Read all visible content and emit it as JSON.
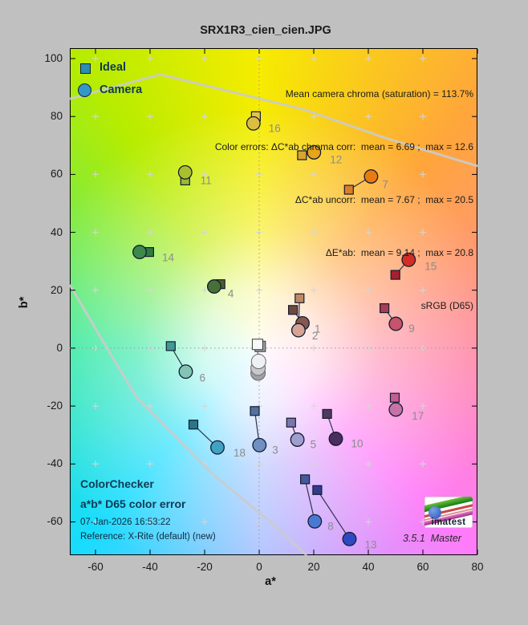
{
  "window": {
    "bg": "#c0c0c0"
  },
  "title": "SRX1R3_cien_cien.JPG",
  "legend": {
    "items": [
      {
        "label": "Ideal",
        "marker": "square",
        "color": "#2b8cb4"
      },
      {
        "label": "Camera",
        "marker": "circle",
        "color": "#3596c8"
      }
    ],
    "text_color": "#0e3a55"
  },
  "stats": {
    "lines": [
      "Mean camera chroma (saturation) = 113.7%",
      "Color errors: ΔC*ab chroma corr:  mean = 6.69 ;  max = 12.6",
      "ΔC*ab uncorr:  mean = 7.67 ;  max = 20.5",
      "ΔE*ab:  mean = 9.14 ;  max = 20.8",
      "sRGB (D65)"
    ]
  },
  "footer": {
    "block_title": "ColorChecker",
    "block_subtitle": "a*b* D65 color error",
    "datetime": "07-Jan-2026 16:53:22",
    "reference": "Reference: X-Rite (default) (new)"
  },
  "branding": {
    "logo_text": "imatest",
    "version": "3.5.1",
    "edition": "Master"
  },
  "axes": {
    "xlabel": "a*",
    "ylabel": "b*",
    "x_ticks": [
      -60,
      -40,
      -20,
      0,
      20,
      40,
      60,
      80
    ],
    "y_ticks": [
      -60,
      -40,
      -20,
      0,
      20,
      40,
      60,
      80,
      100
    ],
    "grid_a": [
      -60,
      -40,
      -20,
      0,
      20,
      40,
      60
    ],
    "grid_b": [
      -60,
      -40,
      -20,
      0,
      20,
      40,
      60,
      80,
      100
    ]
  },
  "chart_data": {
    "type": "scatter",
    "title": "SRX1R3_cien_cien.JPG",
    "xlabel": "a*",
    "ylabel": "b*",
    "xlim": [
      -69.4,
      80
    ],
    "ylim": [
      -71.5,
      103.6
    ],
    "grid": "plus-marks at 20-unit intersections, dotted zero axes",
    "legend_position": "top-left",
    "series": [
      {
        "name": "Ideal",
        "marker": "square"
      },
      {
        "name": "Camera",
        "marker": "circle"
      }
    ],
    "points": [
      {
        "n": "1",
        "ideal": [
          12.4,
          13.2
        ],
        "camera": [
          15.9,
          8.6
        ],
        "ideal_color": "#6e4a3e",
        "camera_color": "#83594e",
        "label_offset": [
          15,
          7
        ]
      },
      {
        "n": "2",
        "ideal": [
          14.8,
          17.2
        ],
        "camera": [
          14.4,
          6.2
        ],
        "ideal_color": "#bd8a64",
        "camera_color": "#d6a394",
        "label_offset": [
          17,
          7
        ]
      },
      {
        "n": "3",
        "ideal": [
          -1.6,
          -21.7
        ],
        "camera": [
          0.1,
          -33.5
        ],
        "ideal_color": "#52719f",
        "camera_color": "#7090c4",
        "label_offset": [
          16,
          6
        ]
      },
      {
        "n": "4",
        "ideal": [
          -14.2,
          22.1
        ],
        "camera": [
          -16.5,
          21.3
        ],
        "ideal_color": "#49602c",
        "camera_color": "#477038",
        "label_offset": [
          17,
          9
        ]
      },
      {
        "n": "5",
        "ideal": [
          11.7,
          -25.7
        ],
        "camera": [
          14.0,
          -31.6
        ],
        "ideal_color": "#7a76ad",
        "camera_color": "#a09ed0",
        "label_offset": [
          16,
          6
        ]
      },
      {
        "n": "6",
        "ideal": [
          -32.4,
          0.7
        ],
        "camera": [
          -26.9,
          -8.1
        ],
        "ideal_color": "#3f9a94",
        "camera_color": "#83c4b4",
        "label_offset": [
          17,
          8
        ]
      },
      {
        "n": "7",
        "ideal": [
          32.9,
          54.7
        ],
        "camera": [
          41.0,
          59.3
        ],
        "ideal_color": "#d97f28",
        "camera_color": "#e97c10",
        "label_offset": [
          14,
          10
        ]
      },
      {
        "n": "8",
        "ideal": [
          16.8,
          -45.3
        ],
        "camera": [
          20.4,
          -59.8
        ],
        "ideal_color": "#46589f",
        "camera_color": "#4a79d4",
        "label_offset": [
          16,
          6
        ]
      },
      {
        "n": "9",
        "ideal": [
          45.9,
          13.8
        ],
        "camera": [
          50.1,
          8.4
        ],
        "ideal_color": "#a93d53",
        "camera_color": "#c4536b",
        "label_offset": [
          16,
          6
        ]
      },
      {
        "n": "10",
        "ideal": [
          24.9,
          -22.7
        ],
        "camera": [
          28.1,
          -31.3
        ],
        "ideal_color": "#4e3a5e",
        "camera_color": "#4a2e60",
        "label_offset": [
          19,
          6
        ]
      },
      {
        "n": "11",
        "ideal": [
          -27.1,
          57.9
        ],
        "camera": [
          -27.1,
          60.7
        ],
        "ideal_color": "#9cb83a",
        "camera_color": "#a9bf2e",
        "label_offset": [
          19,
          10
        ]
      },
      {
        "n": "12",
        "ideal": [
          15.7,
          66.6
        ],
        "camera": [
          20.1,
          67.6
        ],
        "ideal_color": "#dba430",
        "camera_color": "#e7a41c",
        "label_offset": [
          20,
          9
        ]
      },
      {
        "n": "13",
        "ideal": [
          21.3,
          -49.0
        ],
        "camera": [
          33.1,
          -65.9
        ],
        "ideal_color": "#343a8e",
        "camera_color": "#2c49c2",
        "label_offset": [
          19,
          7
        ]
      },
      {
        "n": "14",
        "ideal": [
          -40.3,
          33.2
        ],
        "camera": [
          -43.8,
          33.2
        ],
        "ideal_color": "#2e7a40",
        "camera_color": "#3c8a4a",
        "label_offset": [
          28,
          7
        ]
      },
      {
        "n": "15",
        "ideal": [
          49.9,
          25.3
        ],
        "camera": [
          54.8,
          30.5
        ],
        "ideal_color": "#a62030",
        "camera_color": "#d32d28",
        "label_offset": [
          20,
          8
        ]
      },
      {
        "n": "16",
        "ideal": [
          -1.2,
          80.1
        ],
        "camera": [
          -2.1,
          77.6
        ],
        "ideal_color": "#e3c743",
        "camera_color": "#dcbf41",
        "label_offset": [
          19,
          6
        ]
      },
      {
        "n": "17",
        "ideal": [
          49.7,
          -17.1
        ],
        "camera": [
          50.1,
          -21.2
        ],
        "ideal_color": "#bf5e92",
        "camera_color": "#c673aa",
        "label_offset": [
          20,
          8
        ]
      },
      {
        "n": "18",
        "ideal": [
          -24.1,
          -26.4
        ],
        "camera": [
          -15.3,
          -34.3
        ],
        "ideal_color": "#28768c",
        "camera_color": "#42a2c2",
        "label_offset": [
          20,
          7
        ]
      }
    ],
    "neutral_cluster": {
      "squares": [
        {
          "a": 0.4,
          "b": 0.6,
          "color": "#9aa0a6"
        },
        {
          "a": -0.6,
          "b": 1.3,
          "color": "#f8f8f8"
        }
      ],
      "circles": [
        {
          "a": -0.4,
          "b": -8.6,
          "color": "#9fa1a6"
        },
        {
          "a": -0.4,
          "b": -6.9,
          "color": "#c6c8cc"
        },
        {
          "a": -0.2,
          "b": -4.6,
          "color": "#eef0f4"
        }
      ]
    },
    "gamut_lines": [
      [
        [
          -69.4,
          86.1
        ],
        [
          -36.2,
          94.5
        ],
        [
          16.8,
          82.3
        ],
        [
          46.2,
          72.6
        ],
        [
          80,
          62.9
        ]
      ],
      [
        [
          -69.4,
          21.9
        ],
        [
          -58.2,
          3.9
        ],
        [
          -45.0,
          -16.9
        ],
        [
          -17.4,
          -43.2
        ],
        [
          5.0,
          -60.7
        ],
        [
          17.4,
          -71.5
        ]
      ]
    ]
  }
}
